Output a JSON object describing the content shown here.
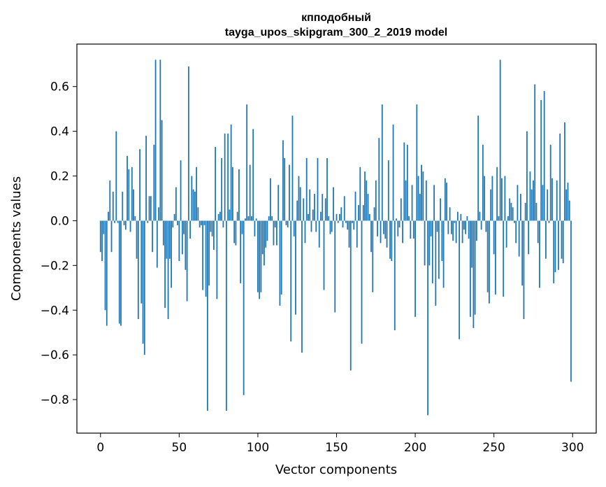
{
  "chart_data": {
    "type": "bar",
    "title": "кпподобный",
    "subtitle": "tayga_upos_skipgram_300_2_2019 model",
    "xlabel": "Vector components",
    "ylabel": "Components values",
    "xlim": [
      -15,
      315
    ],
    "ylim": [
      -0.95,
      0.79
    ],
    "xticks": [
      0,
      50,
      100,
      150,
      200,
      250,
      300
    ],
    "xtick_labels": [
      "0",
      "50",
      "100",
      "150",
      "200",
      "250",
      "300"
    ],
    "yticks": [
      -0.8,
      -0.6,
      -0.4,
      -0.2,
      0.0,
      0.2,
      0.4,
      0.6
    ],
    "ytick_labels": [
      "−0.8",
      "−0.6",
      "−0.4",
      "−0.2",
      "0.0",
      "0.2",
      "0.4",
      "0.6"
    ],
    "bar_color": "#1f77b4",
    "grid": false,
    "x": "0..299",
    "values": [
      -0.14,
      -0.18,
      -0.06,
      -0.4,
      -0.47,
      0.04,
      0.18,
      -0.14,
      0.13,
      -0.01,
      0.4,
      -0.01,
      -0.46,
      -0.47,
      0.13,
      -0.02,
      -0.04,
      0.29,
      0.23,
      -0.05,
      0.24,
      0.14,
      0.02,
      -0.17,
      -0.44,
      0.32,
      -0.37,
      -0.55,
      -0.6,
      0.38,
      -0.01,
      0.11,
      0.11,
      -0.14,
      0.34,
      0.72,
      -0.21,
      0.06,
      0.72,
      0.45,
      -0.11,
      -0.39,
      -0.17,
      -0.44,
      -0.17,
      -0.3,
      -0.03,
      0.03,
      0.15,
      -0.02,
      -0.18,
      0.27,
      -0.15,
      -0.06,
      -0.22,
      -0.36,
      0.69,
      -0.08,
      0.2,
      0.14,
      0.13,
      0.24,
      0.06,
      -0.03,
      -0.02,
      -0.31,
      -0.02,
      -0.34,
      -0.85,
      -0.29,
      -0.05,
      -0.07,
      -0.13,
      0.33,
      -0.35,
      0.03,
      0.04,
      0.28,
      -0.03,
      0.39,
      -0.85,
      0.39,
      0.05,
      0.43,
      0.24,
      -0.1,
      -0.11,
      0.04,
      0.23,
      -0.28,
      -0.06,
      -0.78,
      0.01,
      0.52,
      0.02,
      0.25,
      0.02,
      0.41,
      -0.07,
      0.01,
      -0.32,
      -0.35,
      -0.32,
      -0.15,
      -0.2,
      -0.12,
      -0.09,
      0.02,
      0.19,
      0.02,
      -0.11,
      -0.03,
      -0.11,
      0.16,
      -0.38,
      -0.33,
      0.36,
      0.28,
      -0.02,
      -0.03,
      0.25,
      -0.54,
      0.47,
      -0.07,
      -0.42,
      0.09,
      0.2,
      0.15,
      -0.59,
      0.1,
      -0.1,
      0.28,
      0.03,
      0.14,
      -0.05,
      0.05,
      0.12,
      -0.05,
      0.28,
      -0.12,
      0.04,
      0.12,
      -0.31,
      0.1,
      0.28,
      0.02,
      -0.06,
      -0.05,
      0.15,
      -0.41,
      0.03,
      -0.01,
      0.03,
      0.06,
      -0.03,
      0.11,
      -0.01,
      -0.04,
      -0.12,
      -0.67,
      -0.01,
      -0.04,
      0.13,
      -0.12,
      0.07,
      0.24,
      -0.55,
      0.07,
      0.22,
      0.18,
      0.12,
      0.03,
      -0.14,
      -0.32,
      0.06,
      0.18,
      -0.07,
      0.37,
      -0.1,
      0.52,
      -0.06,
      -0.08,
      -0.12,
      0.27,
      -0.17,
      -0.18,
      0.43,
      -0.49,
      0.01,
      -0.07,
      -0.03,
      0.1,
      -0.1,
      0.35,
      0.18,
      0.34,
      0.02,
      -0.08,
      0.16,
      -0.08,
      -0.43,
      0.52,
      0.2,
      0.12,
      0.25,
      0.22,
      -0.2,
      0.18,
      -0.87,
      -0.2,
      -0.07,
      -0.28,
      0.16,
      -0.38,
      -0.05,
      -0.26,
      0.1,
      -0.18,
      -0.3,
      0.19,
      0.17,
      -0.06,
      0.06,
      -0.06,
      -0.09,
      -0.01,
      -0.1,
      0.04,
      -0.53,
      0.03,
      -0.1,
      -0.04,
      -0.06,
      0.02,
      -0.08,
      -0.43,
      -0.21,
      -0.48,
      -0.42,
      -0.09,
      0.47,
      0.04,
      -0.04,
      0.34,
      0.2,
      -0.05,
      -0.32,
      -0.37,
      0.14,
      0.2,
      -0.15,
      -0.33,
      0.24,
      0.02,
      0.72,
      0.19,
      -0.34,
      0.2,
      -0.12,
      0.02,
      0.1,
      0.08,
      0.06,
      -0.01,
      -0.1,
      0.16,
      -0.16,
      0.12,
      -0.29,
      -0.44,
      0.08,
      0.4,
      -0.15,
      0.22,
      0.14,
      0.18,
      0.61,
      0.08,
      -0.1,
      -0.3,
      0.54,
      0.16,
      0.58,
      -0.17,
      0.14,
      -0.01,
      0.34,
      0.19,
      -0.28,
      -0.23,
      0.18,
      -0.22,
      0.39,
      -0.17,
      -0.19,
      0.44,
      0.14,
      0.17,
      0.09,
      -0.72
    ]
  }
}
